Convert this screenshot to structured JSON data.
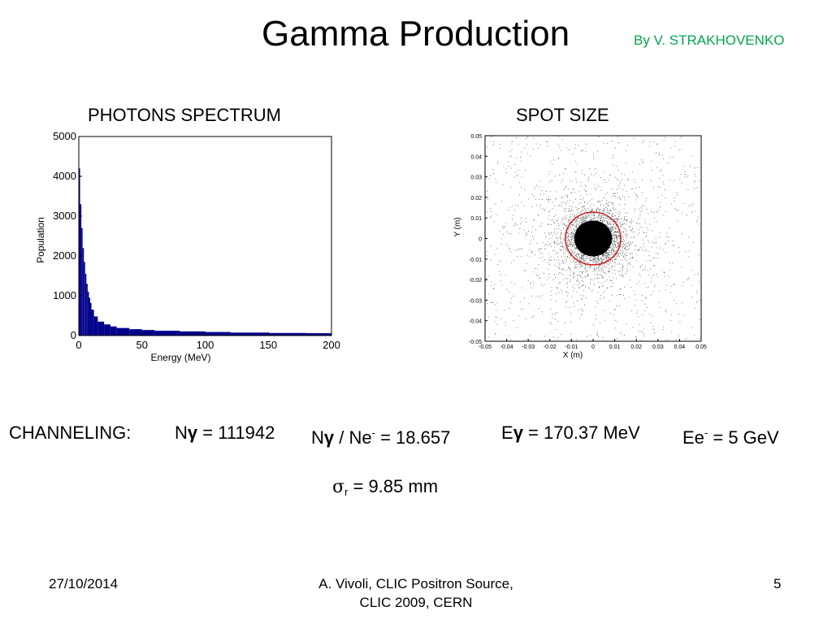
{
  "title": "Gamma Production",
  "author": "By  V. STRAKHOVENKO",
  "colors": {
    "author": "#00a651",
    "bars": "#00008b",
    "circle": "#cc2222",
    "text": "#000000"
  },
  "sections": {
    "left": "PHOTONS SPECTRUM",
    "right": "SPOT SIZE"
  },
  "equations": {
    "label": "CHANNELING:",
    "ngamma": {
      "symbol": "N",
      "greek": "γ",
      "rest": " = 111942"
    },
    "ratio": {
      "symbol": "N",
      "greek": "γ",
      "mid": " / Ne",
      "sup": "-",
      "rest": " = 18.657"
    },
    "egamma": {
      "symbol": "E",
      "greek": "γ",
      "rest": " = 170.37 MeV"
    },
    "ee": {
      "symbol": "Ee",
      "sup": "-",
      "rest": " = 5 GeV"
    },
    "sigma": {
      "greek": "σ",
      "sub": "r",
      "rest": " = 9.85 mm"
    }
  },
  "footer": {
    "date": "27/10/2014",
    "credit_line1": "A. Vivoli,  CLIC Positron Source,",
    "credit_line2": "CLIC 2009, CERN",
    "page": "5"
  },
  "chart_data": [
    {
      "type": "bar",
      "xlabel": "Energy (MeV)",
      "ylabel": "Population",
      "xlim": [
        0,
        200
      ],
      "ylim": [
        0,
        5000
      ],
      "xticks": [
        "0",
        "50",
        "100",
        "150",
        "200"
      ],
      "yticks": [
        "0",
        "1000",
        "2000",
        "3000",
        "4000",
        "5000"
      ],
      "x": [
        1,
        2,
        3,
        4,
        5,
        6,
        7,
        8,
        9,
        10,
        12,
        15,
        20,
        25,
        30,
        40,
        50,
        60,
        80,
        100,
        120,
        150,
        180,
        200
      ],
      "values": [
        4200,
        3300,
        2700,
        2200,
        1850,
        1550,
        1300,
        1100,
        950,
        820,
        650,
        480,
        350,
        280,
        230,
        190,
        160,
        140,
        120,
        105,
        90,
        75,
        65,
        60
      ]
    },
    {
      "type": "scatter",
      "xlabel": "X  (m)",
      "ylabel": "Y  (m)",
      "xlim": [
        -0.05,
        0.05
      ],
      "ylim": [
        -0.05,
        0.05
      ],
      "xticks": [
        "-0.05",
        "-0.04",
        "-0.03",
        "-0.02",
        "-0.01",
        "0",
        "0.01",
        "0.02",
        "0.03",
        "0.04",
        "0.05"
      ],
      "yticks": [
        "-0.05",
        "-0.04",
        "-0.03",
        "-0.02",
        "-0.01",
        "0",
        "0.01",
        "0.02",
        "0.03",
        "0.04",
        "0.05"
      ],
      "circle_radius": 0.00985,
      "core_radius": 0.006,
      "points": 6000
    }
  ]
}
